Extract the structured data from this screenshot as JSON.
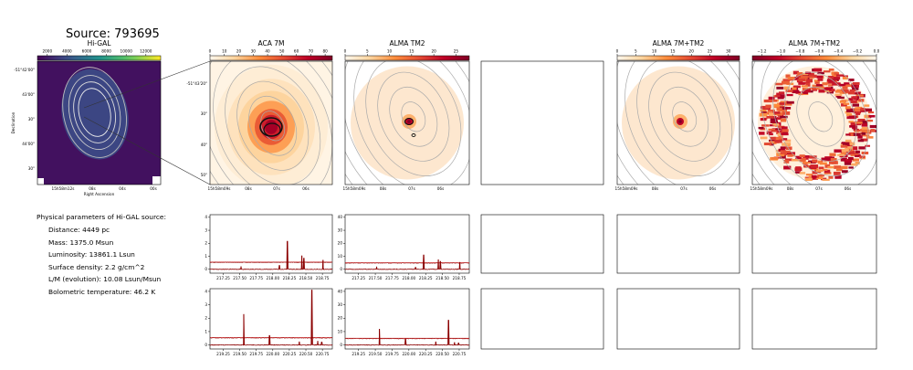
{
  "page": {
    "source_title": "Source: 793695"
  },
  "physical": {
    "heading": "Physical parameters of Hi-GAL source:",
    "items": [
      "Distance: 4449 pc",
      "Mass: 1375.0 Msun",
      "Luminosity: 13861.1 Lsun",
      "Surface density: 2.2 g/cm^2",
      "L/M (evolution): 10.08 Lsun/Msun",
      "Bolometric temperature: 46.2 K"
    ]
  },
  "colors": {
    "viridis_low": "#440154",
    "viridis_high": "#fde725",
    "ylorrd_low": "#fff5e8",
    "ylorrd_high": "#800026",
    "spectrum_line": "#8b0000",
    "threshold_line": "#d62728"
  },
  "chart_data": [
    {
      "type": "heatmap",
      "panel": "higal",
      "title": "Hi-GAL",
      "xlabel": "Right Ascension",
      "ylabel": "Declination",
      "colorbar_ticks": [
        "2000",
        "4000",
        "6000",
        "8000",
        "10000",
        "12000"
      ],
      "colorbar_range": [
        1000,
        13500
      ],
      "x_tick_labels": [
        "15h58m12s",
        "08s",
        "04s",
        "00s"
      ],
      "y_tick_labels": [
        "-51°42'00\"",
        "43'00\"",
        "30\"",
        "44'00\"",
        "30\""
      ],
      "colormap": "viridis"
    },
    {
      "type": "heatmap",
      "panel": "aca7m",
      "title": "ACA 7M",
      "colorbar_ticks": [
        "0",
        "10",
        "20",
        "30",
        "40",
        "50",
        "60",
        "70",
        "80"
      ],
      "colorbar_range": [
        0,
        85
      ],
      "x_tick_labels": [
        "15h58m09s",
        "08s",
        "07s",
        "06s"
      ],
      "y_tick_labels": [
        "-51°43'20\"",
        "30\"",
        "40\"",
        "50\""
      ],
      "colormap": "YlOrRd"
    },
    {
      "type": "heatmap",
      "panel": "almatm2",
      "title": "ALMA TM2",
      "colorbar_ticks": [
        "0",
        "5",
        "10",
        "15",
        "20",
        "25"
      ],
      "colorbar_range": [
        0,
        28
      ],
      "x_tick_labels": [
        "15h58m09s",
        "08s",
        "07s",
        "06s"
      ],
      "colormap": "YlOrRd"
    },
    {
      "type": "heatmap",
      "panel": "alma7mtm2",
      "title": "ALMA 7M+TM2",
      "colorbar_ticks": [
        "0",
        "5",
        "10",
        "15",
        "20",
        "25",
        "30"
      ],
      "colorbar_range": [
        0,
        33
      ],
      "x_tick_labels": [
        "15h58m09s",
        "08s",
        "07s",
        "06s"
      ],
      "colormap": "YlOrRd"
    },
    {
      "type": "heatmap",
      "panel": "alma7mtm2_neg",
      "title": "ALMA 7M+TM2",
      "colorbar_ticks": [
        "−1.2",
        "−1.0",
        "−0.8",
        "−0.6",
        "−0.4",
        "−0.2",
        "0.0"
      ],
      "colorbar_range": [
        -1.3,
        0.0
      ],
      "x_tick_labels": [
        "15h58m09s",
        "08s",
        "07s",
        "06s"
      ],
      "colormap": "YlOrRd_r"
    },
    {
      "type": "line",
      "panel": "spec_aca_top",
      "x_range": [
        217.05,
        218.9
      ],
      "ylim": [
        -0.3,
        4.2
      ],
      "y_ticks": [
        0,
        1,
        2,
        3,
        4
      ],
      "x_tick_labels": [
        "217.25",
        "217.50",
        "217.75",
        "218.00",
        "218.25",
        "218.50",
        "218.75"
      ],
      "x_ticks": [
        217.25,
        217.5,
        217.75,
        218.0,
        218.25,
        218.5,
        218.75
      ],
      "baseline": 0.0,
      "threshold": 0.55,
      "peaks": [
        [
          218.22,
          2.15
        ],
        [
          218.44,
          1.05
        ],
        [
          218.47,
          0.85
        ],
        [
          218.76,
          0.72
        ],
        [
          217.52,
          0.22
        ],
        [
          218.1,
          0.3
        ]
      ]
    },
    {
      "type": "line",
      "panel": "spec_tm2_top",
      "x_range": [
        217.05,
        218.9
      ],
      "ylim": [
        -3,
        42
      ],
      "y_ticks": [
        0,
        10,
        20,
        30,
        40
      ],
      "x_tick_labels": [
        "217.25",
        "217.50",
        "217.75",
        "218.00",
        "218.25",
        "218.50",
        "218.75"
      ],
      "x_ticks": [
        217.25,
        217.5,
        217.75,
        218.0,
        218.25,
        218.5,
        218.75
      ],
      "baseline": 0.0,
      "threshold": 5.0,
      "peaks": [
        [
          218.22,
          11.0
        ],
        [
          218.44,
          7.5
        ],
        [
          218.47,
          6.0
        ],
        [
          218.76,
          5.5
        ],
        [
          217.52,
          2.0
        ],
        [
          218.1,
          1.5
        ]
      ]
    },
    {
      "type": "line",
      "panel": "spec_aca_bot",
      "x_range": [
        219.05,
        220.9
      ],
      "ylim": [
        -0.3,
        4.2
      ],
      "y_ticks": [
        0,
        1,
        2,
        3,
        4
      ],
      "x_tick_labels": [
        "219.25",
        "219.50",
        "219.75",
        "220.00",
        "220.25",
        "220.50",
        "220.75"
      ],
      "x_ticks": [
        219.25,
        219.5,
        219.75,
        220.0,
        220.25,
        220.5,
        220.75
      ],
      "baseline": 0.0,
      "threshold": 0.55,
      "peaks": [
        [
          219.56,
          2.3
        ],
        [
          219.95,
          0.7
        ],
        [
          220.4,
          0.25
        ],
        [
          220.59,
          4.1
        ],
        [
          220.68,
          0.3
        ],
        [
          220.74,
          0.22
        ]
      ]
    },
    {
      "type": "line",
      "panel": "spec_tm2_bot",
      "x_range": [
        219.05,
        220.9
      ],
      "ylim": [
        -3,
        42
      ],
      "y_ticks": [
        0,
        10,
        20,
        30,
        40
      ],
      "x_tick_labels": [
        "219.25",
        "219.50",
        "219.75",
        "220.00",
        "220.25",
        "220.50",
        "220.75"
      ],
      "x_ticks": [
        219.25,
        219.5,
        219.75,
        220.0,
        220.25,
        220.5,
        220.75
      ],
      "baseline": 0.0,
      "threshold": 5.0,
      "peaks": [
        [
          219.56,
          12.0
        ],
        [
          219.95,
          4.5
        ],
        [
          220.4,
          2.5
        ],
        [
          220.59,
          18.5
        ],
        [
          220.68,
          2.0
        ],
        [
          220.74,
          1.5
        ]
      ]
    },
    {
      "type": "line",
      "panel": "empty_r1_c3"
    },
    {
      "type": "line",
      "panel": "empty_r2_c3"
    },
    {
      "type": "line",
      "panel": "empty_r2_c4"
    },
    {
      "type": "line",
      "panel": "empty_r2_c5"
    },
    {
      "type": "line",
      "panel": "empty_r3_c3"
    },
    {
      "type": "line",
      "panel": "empty_r3_c4"
    },
    {
      "type": "line",
      "panel": "empty_r3_c5"
    }
  ]
}
